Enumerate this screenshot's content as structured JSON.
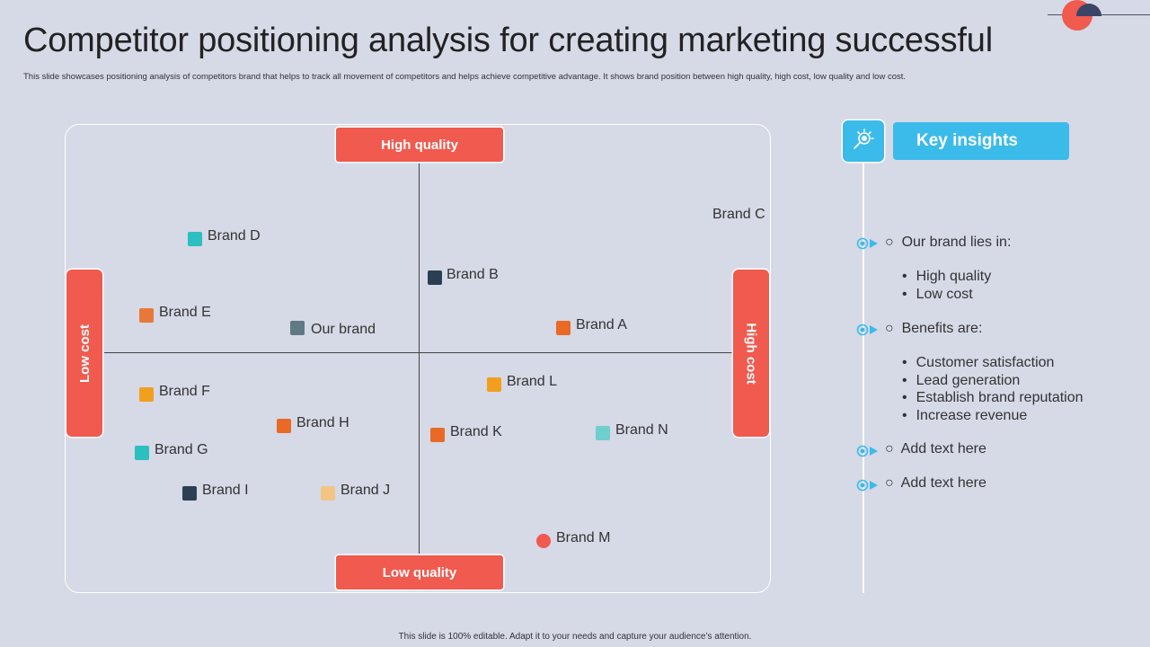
{
  "title": "Competitor positioning analysis for creating marketing successful",
  "subtitle": "This slide showcases positioning analysis of competitors brand that helps to track all movement of competitors and helps achieve competitive advantage. It shows brand position between high quality, high cost, low quality and low cost.",
  "axes": {
    "top": "High quality",
    "bottom": "Low quality",
    "left": "Low cost",
    "right": "High cost"
  },
  "brands": [
    {
      "name": "Brand C",
      "color": null
    },
    {
      "name": "Brand D",
      "color": "#2bbfbf"
    },
    {
      "name": "Brand B",
      "color": "#2b3f52"
    },
    {
      "name": "Brand E",
      "color": "#e8783a"
    },
    {
      "name": "Our brand",
      "color": "#5e7a84"
    },
    {
      "name": "Brand A",
      "color": "#e86a26"
    },
    {
      "name": "Brand L",
      "color": "#f29f1e"
    },
    {
      "name": "Brand F",
      "color": "#f29f1e"
    },
    {
      "name": "Brand H",
      "color": "#e86a26"
    },
    {
      "name": "Brand K",
      "color": "#e86a26"
    },
    {
      "name": "Brand N",
      "color": "#6fcfcf"
    },
    {
      "name": "Brand G",
      "color": "#2bbfbf"
    },
    {
      "name": "Brand I",
      "color": "#2b3f52"
    },
    {
      "name": "Brand J",
      "color": "#f2c585"
    },
    {
      "name": "Brand M",
      "color": "#f05a4f"
    }
  ],
  "insights": {
    "title": "Key insights",
    "items": [
      {
        "text": "Our brand lies in:",
        "sub": [
          "High quality",
          "Low cost"
        ]
      },
      {
        "text": "Benefits are:",
        "sub": [
          "Customer satisfaction",
          "Lead generation",
          "Establish brand reputation",
          "Increase revenue"
        ]
      },
      {
        "text": "Add text here",
        "sub": []
      },
      {
        "text": "Add text here",
        "sub": []
      }
    ]
  },
  "footer": "This slide is 100% editable. Adapt it to your needs and capture your audience’s attention.",
  "colors": {
    "accent_red": "#f05a4f",
    "accent_blue": "#3bbbea",
    "background": "#d6d9e6"
  }
}
